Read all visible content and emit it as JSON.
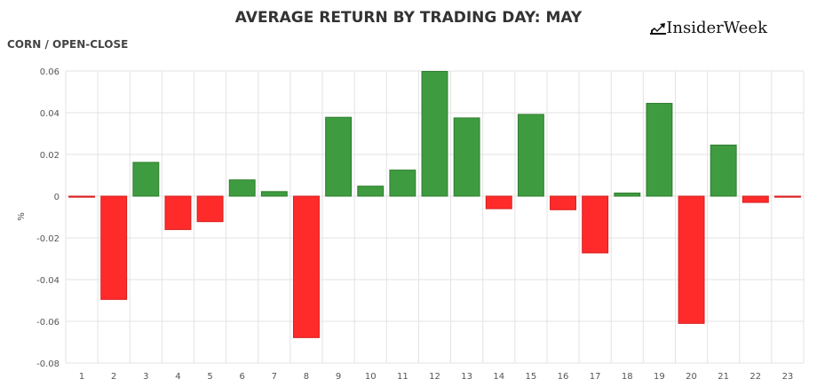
{
  "header": {
    "title": "AVERAGE RETURN BY TRADING DAY: MAY",
    "subtitle": "CORN / OPEN-CLOSE",
    "brand": "InsiderWeek",
    "brand_icon": "chart-trend-icon"
  },
  "colors": {
    "positive": "#3f9b3f",
    "positive_stroke": "#2e7d2e",
    "negative": "#ff2b2b",
    "negative_stroke": "#d61c1c",
    "grid": "#e3e3e3",
    "text": "#555555"
  },
  "chart_data": {
    "type": "bar",
    "title": "AVERAGE RETURN BY TRADING DAY: MAY",
    "subtitle": "CORN / OPEN-CLOSE",
    "ylabel": "%",
    "xlabel": "",
    "ylim": [
      -0.08,
      0.06
    ],
    "yticks": [
      0.06,
      0.04,
      0.02,
      0,
      -0.02,
      -0.04,
      -0.06,
      -0.08
    ],
    "ytick_labels": [
      "0.06",
      "0.04",
      "0.02",
      "0",
      "-0.02",
      "-0.04",
      "-0.06",
      "-0.08"
    ],
    "grid": true,
    "legend": "none",
    "categories": [
      "1",
      "2",
      "3",
      "4",
      "5",
      "6",
      "7",
      "8",
      "9",
      "10",
      "11",
      "12",
      "13",
      "14",
      "15",
      "16",
      "17",
      "18",
      "19",
      "20",
      "21",
      "22",
      "23"
    ],
    "values": [
      -0.0005,
      -0.0495,
      0.0162,
      -0.016,
      -0.0122,
      0.0078,
      0.0022,
      -0.0678,
      0.0378,
      0.0048,
      0.0125,
      0.0598,
      0.0375,
      -0.006,
      0.0392,
      -0.0065,
      -0.0272,
      0.0015,
      0.0445,
      -0.061,
      0.0245,
      -0.003,
      -0.0005
    ]
  }
}
